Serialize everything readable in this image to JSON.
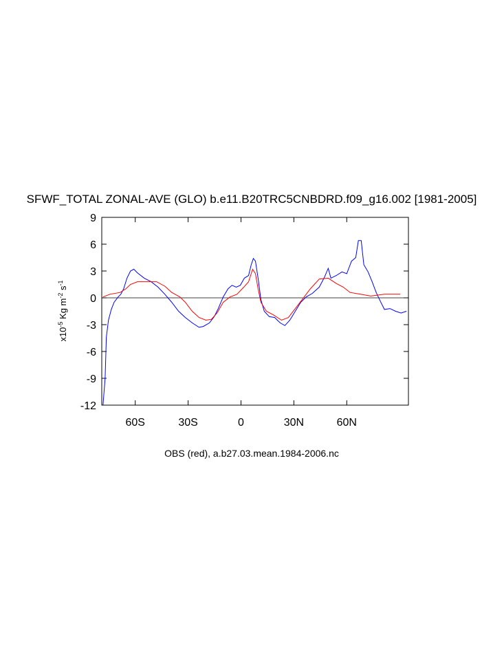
{
  "chart_data": {
    "type": "line",
    "title": "SFWF_TOTAL ZONAL-AVE (GLO) b.e11.B20TRC5CNBDRD.f09_g16.002 [1981-2005]",
    "xlabel": "OBS (red), a.b27.03.mean.1984-2006.nc",
    "ylabel_parts": [
      "x10",
      "-5",
      " Kg m",
      "-2",
      " s",
      "-1"
    ],
    "xlim": [
      -79,
      95
    ],
    "ylim": [
      -12,
      9
    ],
    "xticks": [
      {
        "value": -60,
        "label": "60S"
      },
      {
        "value": -30,
        "label": "30S"
      },
      {
        "value": 0,
        "label": "0"
      },
      {
        "value": 30,
        "label": "30N"
      },
      {
        "value": 60,
        "label": "60N"
      }
    ],
    "yticks": [
      -12,
      -9,
      -6,
      -3,
      0,
      3,
      6,
      9
    ],
    "hline": 0,
    "series": [
      {
        "color": "#0000ff",
        "x": [
          -78.3,
          -77.1,
          -76.4,
          -75.2,
          -73.6,
          -72,
          -69.7,
          -68.2,
          -66.6,
          -64.7,
          -62.7,
          -60.8,
          -58.8,
          -54.9,
          -51,
          -47.1,
          -43.2,
          -39.3,
          -35.4,
          -31.6,
          -27.7,
          -23.8,
          -21.4,
          -17.9,
          -15.2,
          -12.9,
          -10.1,
          -7.4,
          -5.1,
          -2.7,
          -0.4,
          1.9,
          4.3,
          5.8,
          7,
          8.2,
          9.7,
          11.3,
          13.2,
          16,
          19.1,
          22.2,
          24.9,
          27.7,
          30.8,
          33.9,
          37,
          40.5,
          44.4,
          47.1,
          49.5,
          51,
          54.1,
          57.3,
          60,
          62.7,
          65.1,
          66.6,
          68.2,
          69.7,
          72.1,
          74.4,
          76.7,
          79.1,
          81.4,
          84.5,
          87.7,
          90.8,
          93.9
        ],
        "values": [
          -12,
          -9,
          -4.4,
          -2.5,
          -1.3,
          -0.5,
          0.1,
          0.4,
          1.0,
          2.2,
          3.0,
          3.2,
          2.8,
          2.2,
          1.8,
          1.2,
          0.4,
          -0.5,
          -1.5,
          -2.2,
          -2.8,
          -3.3,
          -3.2,
          -2.8,
          -2.1,
          -1.2,
          0.1,
          1.0,
          1.4,
          1.2,
          1.4,
          2.2,
          2.5,
          3.7,
          4.4,
          4.1,
          2.2,
          -0.2,
          -1.5,
          -2.1,
          -2.2,
          -2.8,
          -3.1,
          -2.5,
          -1.5,
          -0.5,
          0.1,
          0.5,
          1.2,
          2.2,
          3.3,
          2.2,
          2.5,
          2.9,
          2.7,
          4.1,
          4.5,
          6.4,
          6.4,
          3.7,
          2.9,
          1.8,
          0.6,
          -0.4,
          -1.3,
          -1.2,
          -1.5,
          -1.7,
          -1.5
        ]
      },
      {
        "color": "#ff0000",
        "x": [
          -78.3,
          -74.4,
          -68.6,
          -65.4,
          -62.7,
          -58.8,
          -53,
          -47.9,
          -43.2,
          -39.3,
          -34.7,
          -31.6,
          -27.7,
          -23.8,
          -19.9,
          -16.8,
          -13.6,
          -10.1,
          -6.2,
          -2.3,
          1.6,
          4.3,
          6.6,
          8.2,
          9.7,
          11.3,
          14.4,
          18.3,
          23,
          26.9,
          30.8,
          34.7,
          39.3,
          44.4,
          49.5,
          54.1,
          58,
          61.9,
          67.8,
          73.6,
          81.4,
          90.4
        ],
        "values": [
          0.1,
          0.4,
          0.6,
          1.0,
          1.5,
          1.8,
          1.8,
          1.8,
          1.3,
          0.6,
          0.1,
          -0.5,
          -1.5,
          -2.2,
          -2.5,
          -2.4,
          -1.7,
          -0.5,
          0.1,
          0.4,
          1.2,
          1.8,
          3.2,
          2.7,
          1.0,
          -0.5,
          -1.5,
          -1.9,
          -2.5,
          -2.2,
          -1.2,
          -0.2,
          1.0,
          2.1,
          2.2,
          1.6,
          1.2,
          0.6,
          0.4,
          0.2,
          0.4,
          0.4
        ]
      }
    ]
  }
}
